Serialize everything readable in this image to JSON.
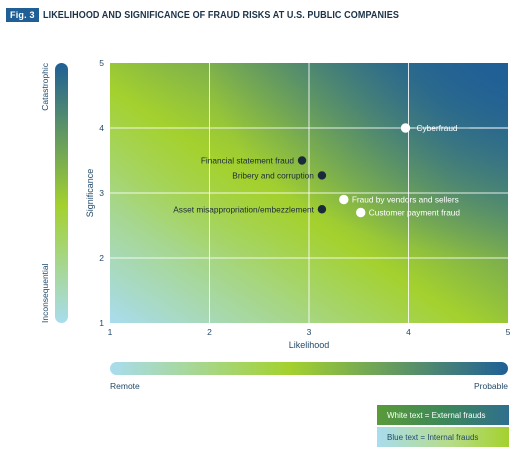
{
  "header": {
    "badge": "Fig. 3",
    "title": "LIKELIHOOD AND SIGNIFICANCE OF FRAUD RISKS AT U.S. PUBLIC COMPANIES"
  },
  "chart_data": {
    "type": "scatter",
    "title": "LIKELIHOOD AND SIGNIFICANCE OF FRAUD RISKS AT U.S. PUBLIC COMPANIES",
    "xlabel": "Likelihood",
    "ylabel": "Significance",
    "xlim": [
      1,
      5
    ],
    "ylim": [
      1,
      5
    ],
    "xticks": [
      "1",
      "2",
      "3",
      "4",
      "5"
    ],
    "yticks": [
      "1",
      "2",
      "3",
      "4",
      "5"
    ],
    "grid": true,
    "y_scale_labels": {
      "low": "Inconsequential",
      "high": "Catastrophic"
    },
    "x_scale_labels": {
      "low": "Remote",
      "high": "Probable"
    },
    "series": [
      {
        "name": "External frauds",
        "color": "#ffffff",
        "points": [
          {
            "label": "Cyberfraud",
            "x": 3.97,
            "y": 4.0
          },
          {
            "label": "Fraud by vendors and sellers",
            "x": 3.35,
            "y": 2.9
          },
          {
            "label": "Customer payment fraud",
            "x": 3.52,
            "y": 2.7
          }
        ]
      },
      {
        "name": "Internal frauds",
        "color": "#1b2a3a",
        "points": [
          {
            "label": "Financial statement fraud",
            "x": 2.93,
            "y": 3.5
          },
          {
            "label": "Bribery and corruption",
            "x": 3.13,
            "y": 3.27
          },
          {
            "label": "Asset misappropriation/embezzlement",
            "x": 3.13,
            "y": 2.75
          }
        ]
      }
    ]
  },
  "legend": {
    "external": "White text = External frauds",
    "internal": "Blue text = Internal frauds"
  },
  "colors": {
    "badge": "#1f5f96",
    "title": "#1b3247",
    "gradient_low": "#a9dcee",
    "gradient_mid": "#a4d12e",
    "gradient_high": "#1f5f96",
    "dark_point": "#1b2a3a"
  }
}
